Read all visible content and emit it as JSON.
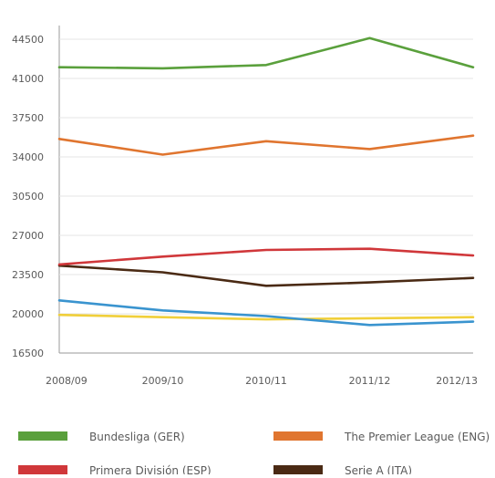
{
  "chart_data": {
    "type": "line",
    "title": "",
    "xlabel": "",
    "ylabel": "",
    "categories": [
      "2008/09",
      "2009/10",
      "2010/11",
      "2011/12",
      "2012/13"
    ],
    "y_ticks": [
      16500,
      20000,
      23500,
      27000,
      30500,
      34000,
      37500,
      41000,
      44500
    ],
    "ylim": [
      16500,
      45500
    ],
    "grid": "horizontal",
    "legend_position": "bottom",
    "series": [
      {
        "name": "Bundesliga (GER)",
        "color": "#5aa03c",
        "values": [
          42000,
          41900,
          42200,
          44600,
          42000
        ]
      },
      {
        "name": "The Premier League (ENG)",
        "color": "#e0752f",
        "values": [
          35600,
          34200,
          35400,
          34700,
          35900
        ]
      },
      {
        "name": "Primera División (ESP)",
        "color": "#d0373a",
        "values": [
          24400,
          25100,
          25700,
          25800,
          25200
        ]
      },
      {
        "name": "Serie A (ITA)",
        "color": "#4a2a14",
        "values": [
          24300,
          23700,
          22500,
          22800,
          23200
        ]
      },
      {
        "name": "",
        "color": "#3a94cf",
        "values": [
          21200,
          20300,
          19800,
          19000,
          19300
        ]
      },
      {
        "name": "",
        "color": "#f0cf3a",
        "values": [
          19900,
          19700,
          19500,
          19600,
          19700
        ]
      }
    ]
  }
}
